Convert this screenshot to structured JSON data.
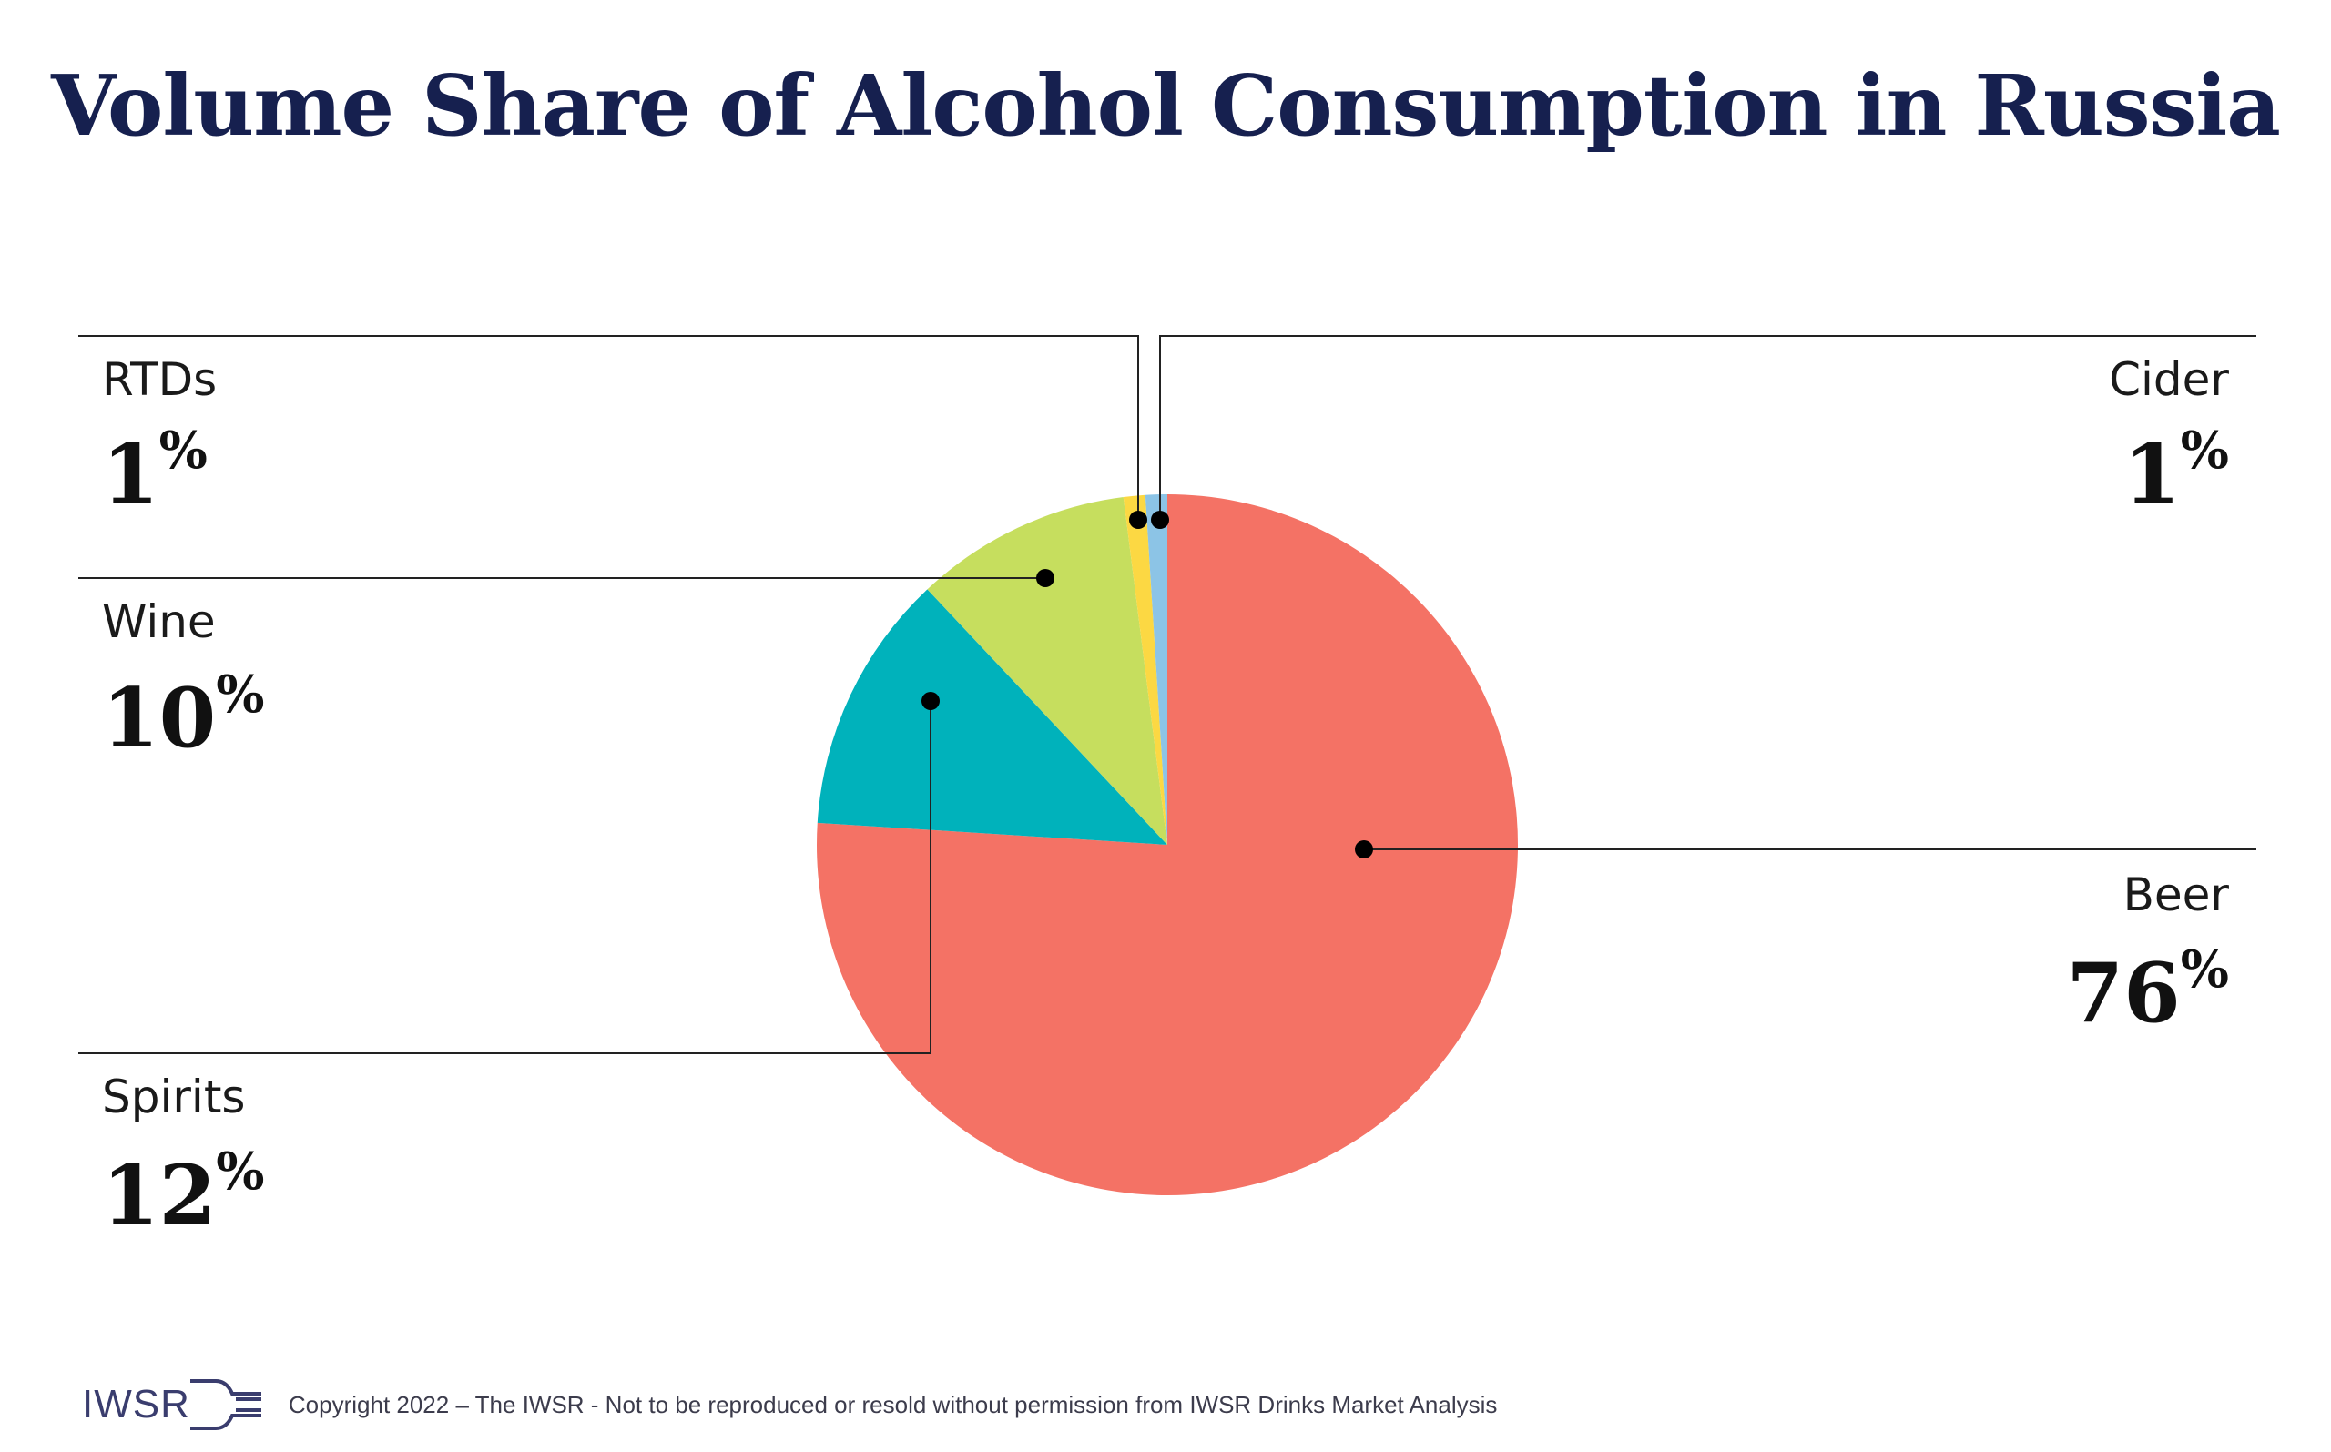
{
  "title": "Volume Share of Alcohol Consumption in Russia",
  "chart_data": {
    "type": "pie",
    "title": "Volume Share of Alcohol Consumption in Russia",
    "unit": "%",
    "slices": [
      {
        "name": "Beer",
        "label": "Beer",
        "value": 76,
        "display": "76",
        "color": "#f47265"
      },
      {
        "name": "Spirits",
        "label": "Spirits",
        "value": 12,
        "display": "12",
        "color": "#00b2bb"
      },
      {
        "name": "Wine",
        "label": "Wine",
        "value": 10,
        "display": "10",
        "color": "#c6de5e"
      },
      {
        "name": "RTDs",
        "label": "RTDs",
        "value": 1,
        "display": "1",
        "color": "#fcd843"
      },
      {
        "name": "Cider",
        "label": "Cider",
        "value": 1,
        "display": "1",
        "color": "#8cc4e6"
      }
    ]
  },
  "footer": {
    "logo": "IWSR",
    "copyright": "Copyright 2022 – The IWSR - Not to be reproduced or resold without permission from IWSR Drinks Market Analysis"
  }
}
